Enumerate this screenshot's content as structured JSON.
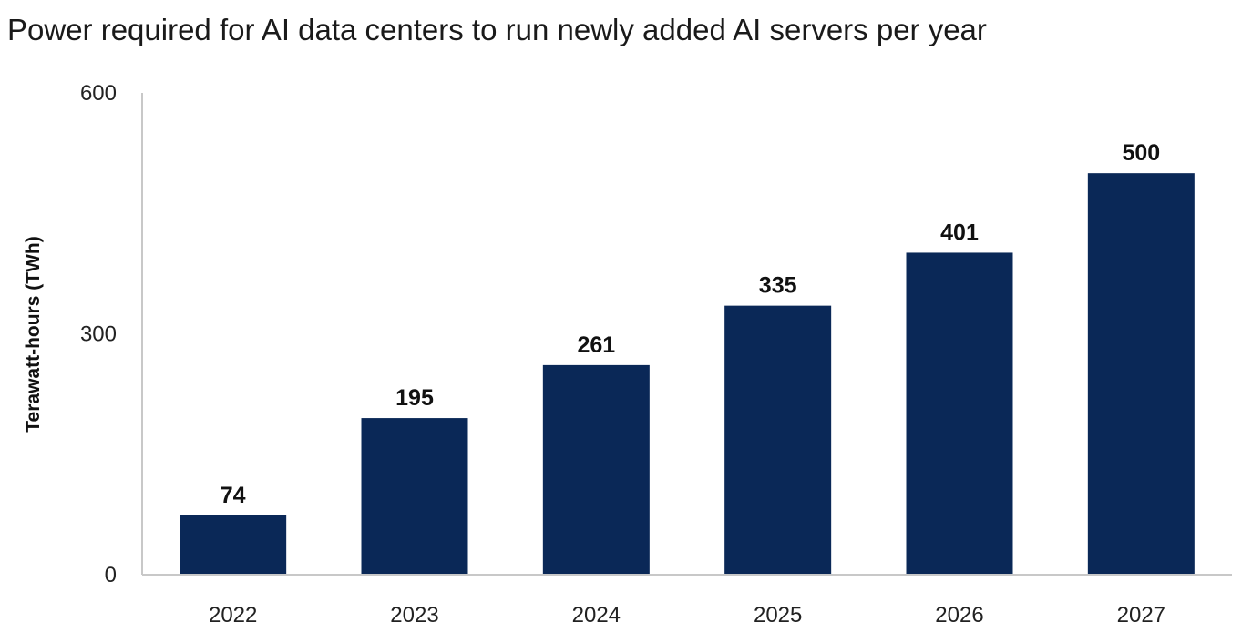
{
  "chart_data": {
    "type": "bar",
    "title": "Power required for AI data centers to run newly added AI servers per year",
    "xlabel": "",
    "ylabel": "Terawatt-hours (TWh)",
    "categories": [
      "2022",
      "2023",
      "2024",
      "2025",
      "2026",
      "2027"
    ],
    "values": [
      74,
      195,
      261,
      335,
      401,
      500
    ],
    "data_labels": [
      "74",
      "195",
      "261",
      "335",
      "401",
      "500"
    ],
    "ylim": [
      0,
      600
    ],
    "yticks": [
      0,
      300,
      600
    ],
    "ytick_labels": [
      "0",
      "300",
      "600"
    ],
    "grid": false,
    "legend": "none",
    "bar_color": "#0a2857",
    "axis_color": "#c8c8c8"
  }
}
